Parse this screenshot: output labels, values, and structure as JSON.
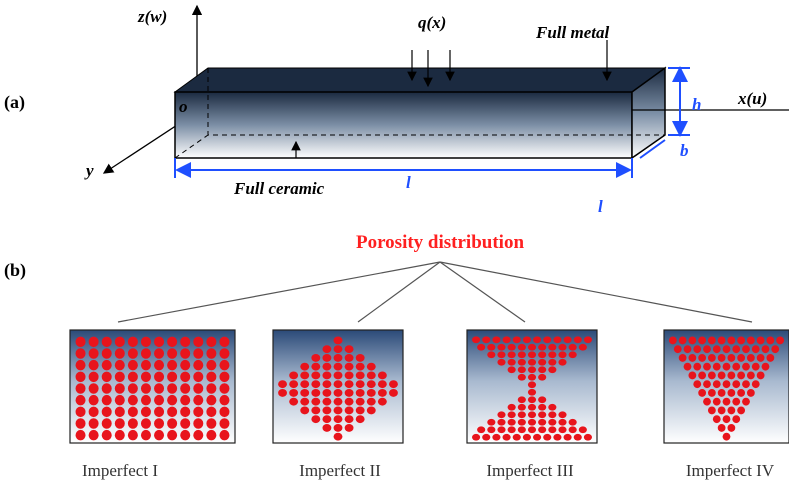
{
  "panel_a": {
    "label": "(a)",
    "axes": {
      "z": "z(w)",
      "x": "x(u)",
      "y": "y",
      "origin": "o"
    },
    "load": "q(x)",
    "top": "Full metal",
    "bottom": "Full ceramic",
    "dims": {
      "height": "h",
      "width": "b",
      "length": "l",
      "length_extra": "l"
    }
  },
  "panel_b": {
    "label": "(b)",
    "title": "Porosity distribution",
    "patterns": [
      {
        "label": "Imperfect I"
      },
      {
        "label": "Imperfect II"
      },
      {
        "label": "Imperfect III"
      },
      {
        "label": "Imperfect IV"
      }
    ]
  }
}
